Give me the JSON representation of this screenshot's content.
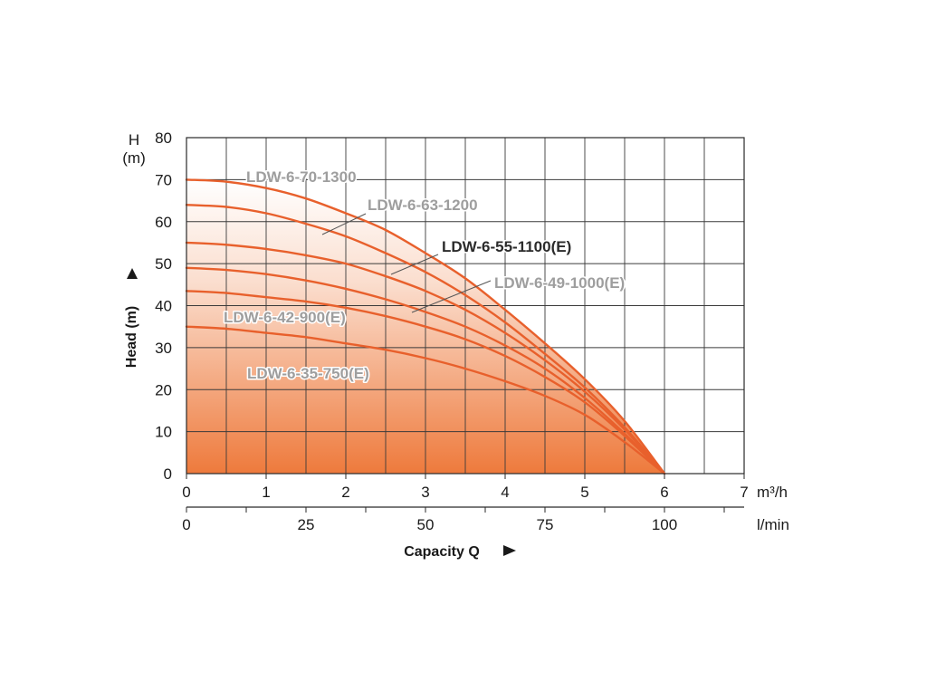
{
  "chart_data": {
    "type": "line",
    "title": "",
    "xlabel": "Capacity Q",
    "ylabel": "Head (m)",
    "y_unit_symbol": "H",
    "y_unit": "(m)",
    "x_unit_primary": "m³/h",
    "x_unit_secondary": "l/min",
    "xlim": [
      0,
      7
    ],
    "ylim": [
      0,
      80
    ],
    "x_ticks": [
      0,
      1,
      2,
      3,
      4,
      5,
      6,
      7
    ],
    "y_ticks": [
      0,
      10,
      20,
      30,
      40,
      50,
      60,
      70,
      80
    ],
    "x_ticks_secondary": [
      0,
      25,
      50,
      75,
      100
    ],
    "x_grid_step": 0.5,
    "grid": true,
    "series_color": "#e8602c",
    "fill_color": "#ee7a3c",
    "series": [
      {
        "name": "LDW-6-70-1300",
        "label_color": "#9e9e9e",
        "x": [
          0,
          0.5,
          1,
          1.5,
          2,
          2.5,
          3,
          3.5,
          4,
          4.5,
          5,
          5.5,
          6
        ],
        "y": [
          70,
          69.5,
          68,
          65.5,
          62,
          58,
          52.5,
          46.5,
          39,
          31,
          22.5,
          12.5,
          0
        ]
      },
      {
        "name": "LDW-6-63-1200",
        "label_color": "#9e9e9e",
        "x": [
          0,
          0.5,
          1,
          1.5,
          2,
          2.5,
          3,
          3.5,
          4,
          4.5,
          5,
          5.5,
          6
        ],
        "y": [
          64,
          63.5,
          62,
          59.5,
          56.5,
          52.5,
          48,
          42.5,
          36,
          28.5,
          20.5,
          11,
          0
        ]
      },
      {
        "name": "LDW-6-55-1100(E)",
        "label_color": "#2b2b2b",
        "x": [
          0,
          0.5,
          1,
          1.5,
          2,
          2.5,
          3,
          3.5,
          4,
          4.5,
          5,
          5.5,
          6
        ],
        "y": [
          55,
          54.5,
          53.5,
          52,
          50,
          47,
          43.5,
          39,
          33.5,
          27,
          19.5,
          10.5,
          0
        ]
      },
      {
        "name": "LDW-6-49-1000(E)",
        "label_color": "#9e9e9e",
        "x": [
          0,
          0.5,
          1,
          1.5,
          2,
          2.5,
          3,
          3.5,
          4,
          4.5,
          5,
          5.5,
          6
        ],
        "y": [
          49,
          48.5,
          47.5,
          46,
          44,
          41.5,
          38.5,
          35,
          30.5,
          25,
          18,
          9.5,
          0
        ]
      },
      {
        "name": "LDW-6-42-900(E)",
        "label_color": "#9e9e9e",
        "x": [
          0,
          0.5,
          1,
          1.5,
          2,
          2.5,
          3,
          3.5,
          4,
          4.5,
          5,
          5.5,
          6
        ],
        "y": [
          43.5,
          43,
          42,
          41,
          39.5,
          37.5,
          35,
          32,
          28,
          23,
          17,
          9,
          0
        ]
      },
      {
        "name": "LDW-6-35-750(E)",
        "label_color": "#9e9e9e",
        "x": [
          0,
          0.5,
          1,
          1.5,
          2,
          2.5,
          3,
          3.5,
          4,
          4.5,
          5,
          5.5,
          6
        ],
        "y": [
          35,
          34.5,
          33.5,
          32.5,
          31,
          29.5,
          27.5,
          25,
          22,
          18.5,
          14,
          7.5,
          0
        ]
      }
    ]
  }
}
